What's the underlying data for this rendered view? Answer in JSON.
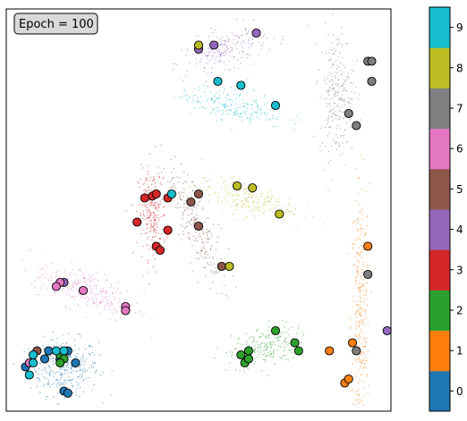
{
  "chart_data": {
    "type": "scatter",
    "title": "",
    "xlabel": "",
    "ylabel": "",
    "grid": false,
    "annotation": "Epoch = 100",
    "colorbar": {
      "ticks": [
        "0",
        "1",
        "2",
        "3",
        "4",
        "5",
        "6",
        "7",
        "8",
        "9"
      ],
      "colors": [
        "#1f77b4",
        "#ff7f0e",
        "#2ca02c",
        "#d62728",
        "#9467bd",
        "#8c564b",
        "#e377c2",
        "#7f7f7f",
        "#bcbd22",
        "#17becf"
      ]
    },
    "clusters": [
      {
        "label": 0,
        "center": [
          0.15,
          0.11
        ],
        "spread": [
          0.045,
          0.035
        ],
        "angle": 0,
        "count": 320
      },
      {
        "label": 1,
        "center": [
          0.92,
          0.22
        ],
        "spread": [
          0.012,
          0.17
        ],
        "angle": 0,
        "count": 320
      },
      {
        "label": 2,
        "center": [
          0.67,
          0.16
        ],
        "spread": [
          0.045,
          0.025
        ],
        "angle": 15,
        "count": 200
      },
      {
        "label": 3,
        "center": [
          0.38,
          0.49
        ],
        "spread": [
          0.018,
          0.055
        ],
        "angle": 0,
        "count": 240
      },
      {
        "label": 4,
        "center": [
          0.57,
          0.9
        ],
        "spread": [
          0.055,
          0.022
        ],
        "angle": 15,
        "count": 220
      },
      {
        "label": 5,
        "center": [
          0.49,
          0.46
        ],
        "spread": [
          0.02,
          0.085
        ],
        "angle": 25,
        "count": 240
      },
      {
        "label": 6,
        "center": [
          0.21,
          0.3
        ],
        "spread": [
          0.07,
          0.025
        ],
        "angle": -20,
        "count": 260
      },
      {
        "label": 7,
        "center": [
          0.86,
          0.79
        ],
        "spread": [
          0.022,
          0.08
        ],
        "angle": 0,
        "count": 260
      },
      {
        "label": 8,
        "center": [
          0.62,
          0.53
        ],
        "spread": [
          0.065,
          0.02
        ],
        "angle": -12,
        "count": 200
      },
      {
        "label": 9,
        "center": [
          0.59,
          0.76
        ],
        "spread": [
          0.07,
          0.02
        ],
        "angle": -10,
        "count": 220
      }
    ],
    "markers": [
      {
        "x": 0.15,
        "y": 0.05,
        "label": 0
      },
      {
        "x": 0.18,
        "y": 0.12,
        "label": 0
      },
      {
        "x": 0.05,
        "y": 0.11,
        "label": 0
      },
      {
        "x": 0.1,
        "y": 0.13,
        "label": 0
      },
      {
        "x": 0.16,
        "y": 0.15,
        "label": 0
      },
      {
        "x": 0.11,
        "y": 0.15,
        "label": 0
      },
      {
        "x": 0.16,
        "y": 0.045,
        "label": 0
      },
      {
        "x": 0.14,
        "y": 0.13,
        "label": 0
      },
      {
        "x": 0.94,
        "y": 0.41,
        "label": 1
      },
      {
        "x": 0.9,
        "y": 0.17,
        "label": 1
      },
      {
        "x": 0.84,
        "y": 0.15,
        "label": 1
      },
      {
        "x": 0.88,
        "y": 0.07,
        "label": 1
      },
      {
        "x": 0.89,
        "y": 0.08,
        "label": 1
      },
      {
        "x": 0.63,
        "y": 0.15,
        "label": 2
      },
      {
        "x": 0.7,
        "y": 0.2,
        "label": 2
      },
      {
        "x": 0.75,
        "y": 0.17,
        "label": 2
      },
      {
        "x": 0.76,
        "y": 0.15,
        "label": 2
      },
      {
        "x": 0.61,
        "y": 0.14,
        "label": 2
      },
      {
        "x": 0.62,
        "y": 0.12,
        "label": 2
      },
      {
        "x": 0.63,
        "y": 0.13,
        "label": 2
      },
      {
        "x": 0.14,
        "y": 0.14,
        "label": 2
      },
      {
        "x": 0.15,
        "y": 0.13,
        "label": 2
      },
      {
        "x": 0.14,
        "y": 0.12,
        "label": 2
      },
      {
        "x": 0.36,
        "y": 0.53,
        "label": 3
      },
      {
        "x": 0.38,
        "y": 0.535,
        "label": 3
      },
      {
        "x": 0.39,
        "y": 0.54,
        "label": 3
      },
      {
        "x": 0.42,
        "y": 0.53,
        "label": 3
      },
      {
        "x": 0.34,
        "y": 0.47,
        "label": 3
      },
      {
        "x": 0.42,
        "y": 0.45,
        "label": 3
      },
      {
        "x": 0.39,
        "y": 0.41,
        "label": 3
      },
      {
        "x": 0.4,
        "y": 0.4,
        "label": 3
      },
      {
        "x": 0.5,
        "y": 0.9,
        "label": 4
      },
      {
        "x": 0.54,
        "y": 0.91,
        "label": 4
      },
      {
        "x": 0.65,
        "y": 0.94,
        "label": 4
      },
      {
        "x": 0.15,
        "y": 0.32,
        "label": 4
      },
      {
        "x": 0.99,
        "y": 0.2,
        "label": 4
      },
      {
        "x": 0.5,
        "y": 0.54,
        "label": 5
      },
      {
        "x": 0.48,
        "y": 0.52,
        "label": 5
      },
      {
        "x": 0.5,
        "y": 0.46,
        "label": 5
      },
      {
        "x": 0.56,
        "y": 0.36,
        "label": 5
      },
      {
        "x": 0.08,
        "y": 0.15,
        "label": 5
      },
      {
        "x": 0.14,
        "y": 0.32,
        "label": 6
      },
      {
        "x": 0.13,
        "y": 0.31,
        "label": 6
      },
      {
        "x": 0.2,
        "y": 0.3,
        "label": 6
      },
      {
        "x": 0.31,
        "y": 0.26,
        "label": 6
      },
      {
        "x": 0.31,
        "y": 0.25,
        "label": 6
      },
      {
        "x": 0.06,
        "y": 0.12,
        "label": 6
      },
      {
        "x": 0.94,
        "y": 0.87,
        "label": 7
      },
      {
        "x": 0.95,
        "y": 0.87,
        "label": 7
      },
      {
        "x": 0.95,
        "y": 0.82,
        "label": 7
      },
      {
        "x": 0.89,
        "y": 0.74,
        "label": 7
      },
      {
        "x": 0.91,
        "y": 0.71,
        "label": 7
      },
      {
        "x": 0.94,
        "y": 0.34,
        "label": 7
      },
      {
        "x": 0.91,
        "y": 0.15,
        "label": 7
      },
      {
        "x": 0.5,
        "y": 0.91,
        "label": 8
      },
      {
        "x": 0.6,
        "y": 0.56,
        "label": 8
      },
      {
        "x": 0.64,
        "y": 0.555,
        "label": 8
      },
      {
        "x": 0.71,
        "y": 0.49,
        "label": 8
      },
      {
        "x": 0.58,
        "y": 0.36,
        "label": 8
      },
      {
        "x": 0.55,
        "y": 0.82,
        "label": 9
      },
      {
        "x": 0.61,
        "y": 0.81,
        "label": 9
      },
      {
        "x": 0.7,
        "y": 0.76,
        "label": 9
      },
      {
        "x": 0.43,
        "y": 0.54,
        "label": 9
      },
      {
        "x": 0.07,
        "y": 0.14,
        "label": 9
      },
      {
        "x": 0.07,
        "y": 0.12,
        "label": 9
      },
      {
        "x": 0.06,
        "y": 0.09,
        "label": 9
      },
      {
        "x": 0.13,
        "y": 0.15,
        "label": 9
      },
      {
        "x": 0.15,
        "y": 0.15,
        "label": 9
      }
    ]
  }
}
